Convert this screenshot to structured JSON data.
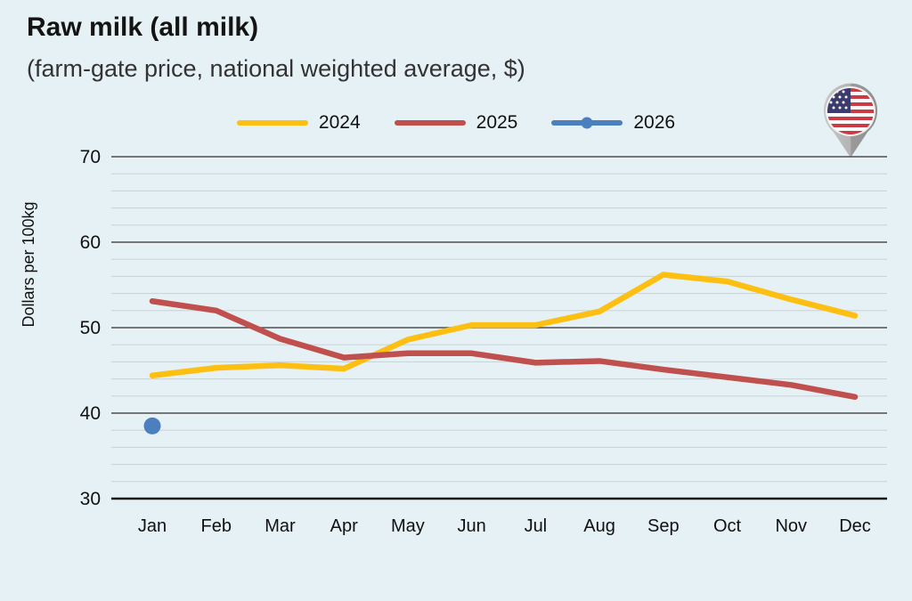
{
  "header": {
    "title": "Raw milk (all milk)",
    "subtitle": "(farm-gate price, national weighted average, $)"
  },
  "icons": {
    "flag_pin": "us-flag-map-pin"
  },
  "colors": {
    "background": "#E6F1F5",
    "minor_gridline": "#CBD6DA",
    "major_gridline": "#4F4F4F",
    "axis_line": "#111111",
    "text": "#111111"
  },
  "chart_data": {
    "type": "line",
    "title": "Raw milk (all milk)",
    "subtitle": "(farm-gate price, national weighted average, $)",
    "xlabel": "",
    "ylabel": "Dollars per 100kg",
    "ylim": [
      30,
      70
    ],
    "y_major_ticks": [
      30,
      40,
      50,
      60,
      70
    ],
    "y_minor_step": 2,
    "grid": true,
    "legend_position": "top-center",
    "categories": [
      "Jan",
      "Feb",
      "Mar",
      "Apr",
      "May",
      "Jun",
      "Jul",
      "Aug",
      "Sep",
      "Oct",
      "Nov",
      "Dec"
    ],
    "series": [
      {
        "name": "2024",
        "type": "line",
        "color": "#FDBF11",
        "values": [
          44.4,
          45.3,
          45.6,
          45.2,
          48.6,
          50.3,
          50.3,
          51.9,
          56.2,
          55.4,
          53.3,
          51.4
        ]
      },
      {
        "name": "2025",
        "type": "line",
        "color": "#C0504D",
        "values": [
          53.1,
          52.0,
          48.7,
          46.5,
          47.0,
          47.0,
          45.9,
          46.1,
          45.1,
          44.2,
          43.3,
          41.9
        ]
      },
      {
        "name": "2026",
        "type": "scatter",
        "color": "#4C7FBE",
        "values": [
          38.5,
          null,
          null,
          null,
          null,
          null,
          null,
          null,
          null,
          null,
          null,
          null
        ]
      }
    ]
  }
}
